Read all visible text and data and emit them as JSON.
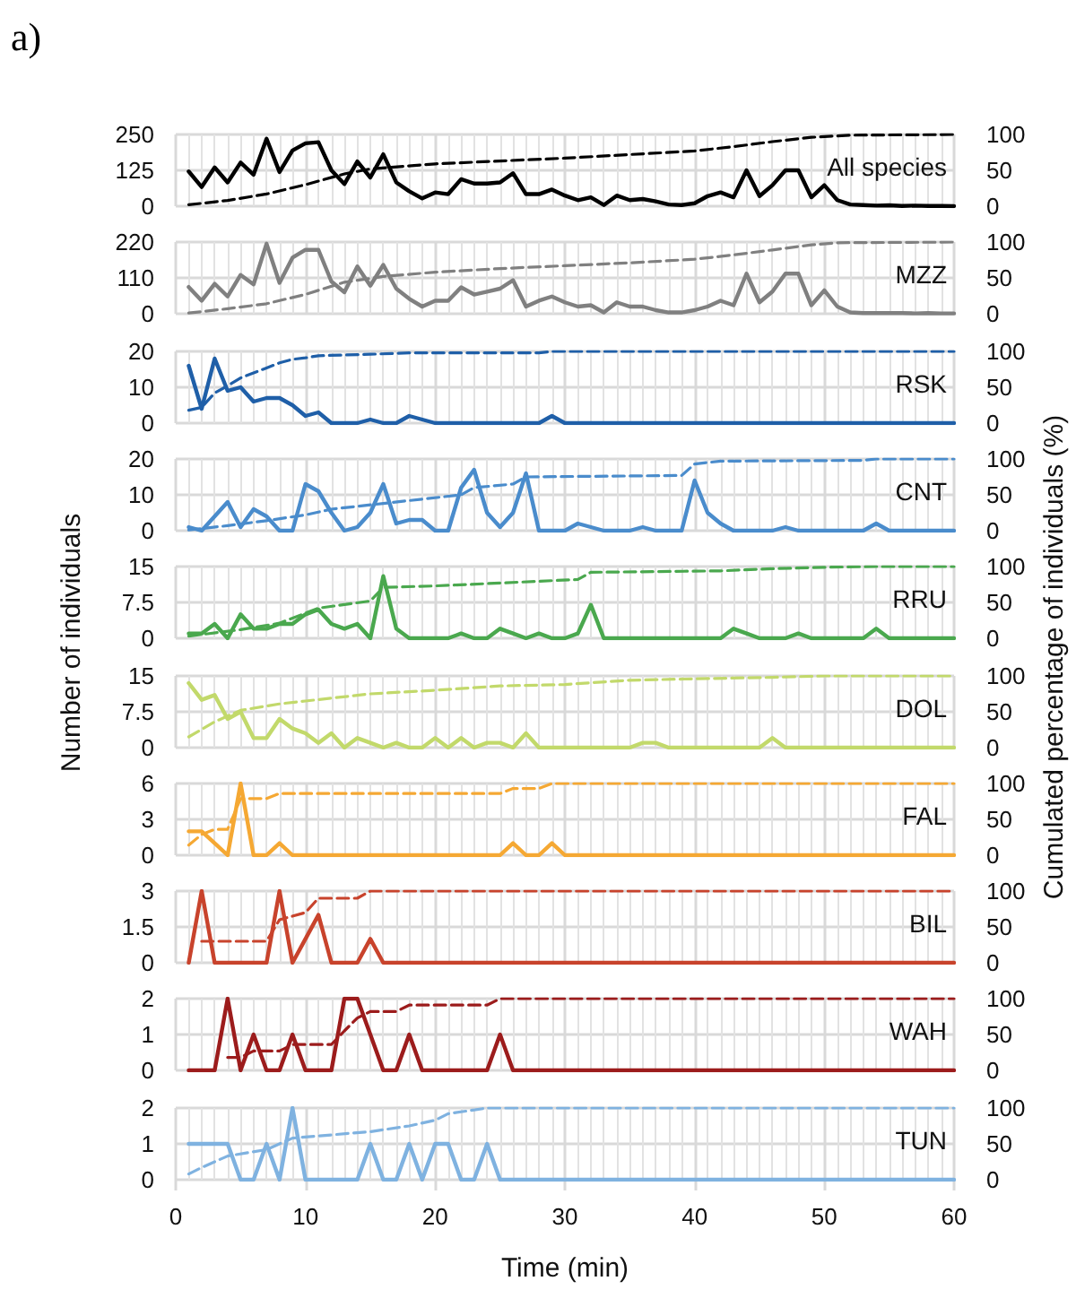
{
  "chart_data": [
    {
      "type": "line",
      "title": "a)",
      "y2label": "Cumulated percentage of individuals (%)",
      "x": [
        1,
        2,
        3,
        4,
        5,
        6,
        7,
        8,
        9,
        10,
        11,
        12,
        13,
        14,
        15,
        16,
        17,
        18,
        19,
        20,
        21,
        22,
        23,
        24,
        25,
        26,
        27,
        28,
        29,
        30,
        31,
        32,
        33,
        34,
        35,
        36,
        37,
        38,
        39,
        40,
        41,
        42,
        43,
        44,
        45,
        46,
        47,
        48,
        49,
        50,
        51,
        52,
        53,
        54,
        55,
        56,
        57,
        58,
        59,
        60
      ],
      "xlim": [
        0,
        60
      ],
      "xticks": [
        0,
        10,
        20,
        30,
        40,
        50,
        60
      ],
      "ylim": [
        0,
        250
      ],
      "yticks": [
        0,
        125,
        250
      ],
      "y2lim": [
        0,
        100
      ],
      "y2ticks": [
        0,
        50,
        100
      ],
      "grid": true,
      "marker": "none",
      "tick_labels": "y",
      "series": [
        {
          "name": "All species",
          "color": "#000000",
          "values": [
            121,
            67,
            135,
            83,
            152,
            110,
            235,
            119,
            194,
            219,
            223,
            125,
            77,
            156,
            100,
            181,
            83,
            52,
            27,
            48,
            42,
            94,
            79,
            79,
            83,
            115,
            42,
            42,
            58,
            37,
            21,
            31,
            4,
            37,
            21,
            25,
            17,
            6,
            4,
            10,
            35,
            48,
            31,
            125,
            35,
            73,
            125,
            125,
            31,
            73,
            21,
            6,
            4,
            2,
            3,
            1,
            2,
            1,
            1,
            0
          ]
        },
        {
          "color": "#000000",
          "axis": "y2",
          "line_style": "dashed",
          "x": [
            1,
            4,
            7,
            10,
            13,
            15,
            20,
            25,
            30,
            35,
            40,
            43,
            46,
            49,
            52,
            60
          ],
          "values": [
            2,
            8,
            17,
            30,
            45,
            52,
            59,
            63,
            67,
            72,
            77,
            83,
            90,
            96,
            99,
            100
          ]
        }
      ]
    },
    {
      "type": "line",
      "x": [
        1,
        2,
        3,
        4,
        5,
        6,
        7,
        8,
        9,
        10,
        11,
        12,
        13,
        14,
        15,
        16,
        17,
        18,
        19,
        20,
        21,
        22,
        23,
        24,
        25,
        26,
        27,
        28,
        29,
        30,
        31,
        32,
        33,
        34,
        35,
        36,
        37,
        38,
        39,
        40,
        41,
        42,
        43,
        44,
        45,
        46,
        47,
        48,
        49,
        50,
        51,
        52,
        53,
        54,
        55,
        56,
        57,
        58,
        59,
        60
      ],
      "xlim": [
        0,
        60
      ],
      "xticks": [
        0,
        10,
        20,
        30,
        40,
        50,
        60
      ],
      "ylim": [
        0,
        220
      ],
      "yticks": [
        0,
        110,
        220
      ],
      "y2lim": [
        0,
        100
      ],
      "y2ticks": [
        0,
        50,
        100
      ],
      "grid": true,
      "marker": "none",
      "tick_labels": "y",
      "series": [
        {
          "name": "MZZ",
          "color": "#808080",
          "values": [
            82,
            40,
            92,
            53,
            119,
            90,
            215,
            95,
            172,
            196,
            196,
            99,
            66,
            145,
            86,
            150,
            77,
            46,
            22,
            40,
            40,
            81,
            59,
            68,
            77,
            103,
            22,
            40,
            53,
            35,
            22,
            26,
            4,
            35,
            22,
            22,
            11,
            4,
            4,
            11,
            22,
            40,
            26,
            123,
            35,
            68,
            123,
            123,
            26,
            72,
            22,
            4,
            2,
            2,
            2,
            2,
            1,
            2,
            1,
            1
          ]
        },
        {
          "color": "#808080",
          "axis": "y2",
          "line_style": "dashed",
          "x": [
            1,
            4,
            7,
            10,
            13,
            16,
            20,
            25,
            30,
            35,
            40,
            43,
            46,
            49,
            51,
            60
          ],
          "values": [
            1,
            7,
            14,
            27,
            44,
            52,
            58,
            63,
            67,
            71,
            76,
            82,
            89,
            96,
            99,
            100
          ]
        }
      ]
    },
    {
      "type": "line",
      "x": [
        1,
        2,
        3,
        4,
        5,
        6,
        7,
        8,
        9,
        10,
        11,
        12,
        13,
        14,
        15,
        16,
        17,
        18,
        19,
        20,
        21,
        22,
        23,
        24,
        25,
        26,
        27,
        28,
        29,
        30,
        31,
        32,
        33,
        34,
        35,
        36,
        37,
        38,
        39,
        40,
        41,
        42,
        43,
        44,
        45,
        46,
        47,
        48,
        49,
        50,
        51,
        52,
        53,
        54,
        55,
        56,
        57,
        58,
        59,
        60
      ],
      "xlim": [
        0,
        60
      ],
      "xticks": [
        0,
        10,
        20,
        30,
        40,
        50,
        60
      ],
      "ylim": [
        0,
        20
      ],
      "yticks": [
        0,
        10,
        20
      ],
      "y2lim": [
        0,
        100
      ],
      "y2ticks": [
        0,
        50,
        100
      ],
      "grid": true,
      "marker": "none",
      "tick_labels": "y",
      "series": [
        {
          "name": "RSK",
          "color": "#1f5fa8",
          "values": [
            16,
            4,
            18,
            9,
            10,
            6,
            7,
            7,
            5,
            2,
            3,
            0,
            0,
            0,
            1,
            0,
            0,
            2,
            1,
            0,
            0,
            0,
            0,
            0,
            0,
            0,
            0,
            0,
            2,
            0,
            0,
            0,
            0,
            0,
            0,
            0,
            0,
            0,
            0,
            0,
            0,
            0,
            0,
            0,
            0,
            0,
            0,
            0,
            0,
            0,
            0,
            0,
            0,
            0,
            0,
            0,
            0,
            0,
            0,
            0
          ]
        },
        {
          "color": "#1f5fa8",
          "axis": "y2",
          "line_style": "dashed",
          "x": [
            1,
            2,
            3,
            4,
            5,
            6,
            7,
            8,
            9,
            10,
            11,
            15,
            18,
            28,
            29,
            60
          ],
          "values": [
            18,
            22,
            42,
            52,
            63,
            70,
            77,
            84,
            89,
            91,
            94,
            96,
            98,
            98,
            100,
            100
          ]
        }
      ]
    },
    {
      "type": "line",
      "x": [
        1,
        2,
        3,
        4,
        5,
        6,
        7,
        8,
        9,
        10,
        11,
        12,
        13,
        14,
        15,
        16,
        17,
        18,
        19,
        20,
        21,
        22,
        23,
        24,
        25,
        26,
        27,
        28,
        29,
        30,
        31,
        32,
        33,
        34,
        35,
        36,
        37,
        38,
        39,
        40,
        41,
        42,
        43,
        44,
        45,
        46,
        47,
        48,
        49,
        50,
        51,
        52,
        53,
        54,
        55,
        56,
        57,
        58,
        59,
        60
      ],
      "xlim": [
        0,
        60
      ],
      "xticks": [
        0,
        10,
        20,
        30,
        40,
        50,
        60
      ],
      "ylim": [
        0,
        20
      ],
      "yticks": [
        0,
        10,
        20
      ],
      "y2lim": [
        0,
        100
      ],
      "y2ticks": [
        0,
        50,
        100
      ],
      "grid": true,
      "marker": "none",
      "tick_labels": "y",
      "series": [
        {
          "name": "CNT",
          "color": "#4a8ccc",
          "values": [
            1,
            0,
            4,
            8,
            1,
            6,
            4,
            0,
            0,
            13,
            11,
            5,
            0,
            1,
            5,
            13,
            2,
            3,
            3,
            0,
            0,
            12,
            17,
            5,
            1,
            5,
            16,
            0,
            0,
            0,
            2,
            1,
            0,
            0,
            0,
            1,
            0,
            0,
            0,
            14,
            5,
            2,
            0,
            0,
            0,
            0,
            1,
            0,
            0,
            0,
            0,
            0,
            0,
            2,
            0,
            0,
            0,
            0,
            0,
            0
          ]
        },
        {
          "color": "#4a8ccc",
          "axis": "y2",
          "line_style": "dashed",
          "x": [
            1,
            4,
            7,
            10,
            12,
            16,
            19,
            22,
            23,
            26,
            27,
            39,
            40,
            42,
            53,
            54,
            60
          ],
          "values": [
            1,
            7,
            14,
            22,
            30,
            38,
            44,
            50,
            60,
            65,
            75,
            77,
            93,
            97,
            98,
            100,
            100
          ]
        }
      ]
    },
    {
      "type": "line",
      "x": [
        1,
        2,
        3,
        4,
        5,
        6,
        7,
        8,
        9,
        10,
        11,
        12,
        13,
        14,
        15,
        16,
        17,
        18,
        19,
        20,
        21,
        22,
        23,
        24,
        25,
        26,
        27,
        28,
        29,
        30,
        31,
        32,
        33,
        34,
        35,
        36,
        37,
        38,
        39,
        40,
        41,
        42,
        43,
        44,
        45,
        46,
        47,
        48,
        49,
        50,
        51,
        52,
        53,
        54,
        55,
        56,
        57,
        58,
        59,
        60
      ],
      "xlim": [
        0,
        60
      ],
      "xticks": [
        0,
        10,
        20,
        30,
        40,
        50,
        60
      ],
      "ylabel": "Number of individuals",
      "ylim": [
        0,
        15
      ],
      "yticks": [
        0,
        7.5,
        15
      ],
      "y2lim": [
        0,
        100
      ],
      "y2ticks": [
        0,
        50,
        100
      ],
      "grid": true,
      "marker": "none",
      "tick_labels": "y",
      "series": [
        {
          "name": "RRU",
          "color": "#4aa84e",
          "values": [
            1,
            1,
            3,
            0,
            5,
            2,
            2,
            3,
            3,
            5,
            6,
            3,
            2,
            3,
            0,
            13,
            2,
            0,
            0,
            0,
            0,
            1,
            0,
            0,
            2,
            1,
            0,
            1,
            0,
            0,
            1,
            7,
            0,
            0,
            0,
            0,
            0,
            0,
            0,
            0,
            0,
            0,
            2,
            1,
            0,
            0,
            0,
            1,
            0,
            0,
            0,
            0,
            0,
            2,
            0,
            0,
            0,
            0,
            0,
            0
          ]
        },
        {
          "color": "#4aa84e",
          "axis": "y2",
          "line_style": "dashed",
          "x": [
            1,
            5,
            8,
            11,
            15,
            16,
            20,
            25,
            31,
            32,
            42,
            46,
            50,
            54,
            60
          ],
          "values": [
            3,
            12,
            21,
            42,
            52,
            71,
            73,
            77,
            82,
            92,
            94,
            97,
            99,
            100,
            100
          ]
        }
      ]
    },
    {
      "type": "line",
      "x": [
        1,
        2,
        3,
        4,
        5,
        6,
        7,
        8,
        9,
        10,
        11,
        12,
        13,
        14,
        15,
        16,
        17,
        18,
        19,
        20,
        21,
        22,
        23,
        24,
        25,
        26,
        27,
        28,
        29,
        30,
        31,
        32,
        33,
        34,
        35,
        36,
        37,
        38,
        39,
        40,
        41,
        42,
        43,
        44,
        45,
        46,
        47,
        48,
        49,
        50,
        51,
        52,
        53,
        54,
        55,
        56,
        57,
        58,
        59,
        60
      ],
      "xlim": [
        0,
        60
      ],
      "xticks": [
        0,
        10,
        20,
        30,
        40,
        50,
        60
      ],
      "ylim": [
        0,
        15
      ],
      "yticks": [
        0,
        7.5,
        15
      ],
      "y2lim": [
        0,
        100
      ],
      "y2ticks": [
        0,
        50,
        100
      ],
      "grid": true,
      "marker": "none",
      "tick_labels": "y",
      "series": [
        {
          "name": "DOL",
          "color": "#c2d96b",
          "values": [
            13.5,
            10,
            11,
            6,
            7.5,
            2,
            2,
            6,
            4,
            3,
            1,
            3,
            0,
            2,
            1,
            0,
            1,
            0,
            0,
            2,
            0,
            2,
            0,
            1,
            1,
            0,
            3,
            0,
            0,
            0,
            0,
            0,
            0,
            0,
            0,
            1,
            1,
            0,
            0,
            0,
            0,
            0,
            0,
            0,
            0,
            2,
            0,
            0,
            0,
            0,
            0,
            0,
            0,
            0,
            0,
            0,
            0,
            0,
            0,
            0
          ]
        },
        {
          "color": "#c2d96b",
          "axis": "y2",
          "line_style": "dashed",
          "x": [
            1,
            3,
            5,
            8,
            10,
            15,
            20,
            25,
            30,
            35,
            40,
            46,
            50,
            60
          ],
          "values": [
            15,
            36,
            52,
            61,
            65,
            75,
            80,
            86,
            88,
            94,
            96,
            98,
            100,
            100
          ]
        }
      ]
    },
    {
      "type": "line",
      "x": [
        1,
        2,
        3,
        4,
        5,
        6,
        7,
        8,
        9,
        10,
        11,
        12,
        13,
        14,
        15,
        16,
        17,
        18,
        19,
        20,
        21,
        22,
        23,
        24,
        25,
        26,
        27,
        28,
        29,
        30,
        31,
        32,
        33,
        34,
        35,
        36,
        37,
        38,
        39,
        40,
        41,
        42,
        43,
        44,
        45,
        46,
        47,
        48,
        49,
        50,
        51,
        52,
        53,
        54,
        55,
        56,
        57,
        58,
        59,
        60
      ],
      "xlim": [
        0,
        60
      ],
      "xticks": [
        0,
        10,
        20,
        30,
        40,
        50,
        60
      ],
      "ylim": [
        0,
        6
      ],
      "yticks": [
        0,
        3,
        6
      ],
      "y2lim": [
        0,
        100
      ],
      "y2ticks": [
        0,
        50,
        100
      ],
      "grid": true,
      "marker": "none",
      "tick_labels": "y",
      "series": [
        {
          "name": "FAL",
          "color": "#f5a833",
          "values": [
            2,
            2,
            1,
            0,
            6,
            0,
            0,
            1,
            0,
            0,
            0,
            0,
            0,
            0,
            0,
            0,
            0,
            0,
            0,
            0,
            0,
            0,
            0,
            0,
            0,
            1,
            0,
            0,
            1,
            0,
            0,
            0,
            0,
            0,
            0,
            0,
            0,
            0,
            0,
            0,
            0,
            0,
            0,
            0,
            0,
            0,
            0,
            0,
            0,
            0,
            0,
            0,
            0,
            0,
            0,
            0,
            0,
            0,
            0,
            0
          ]
        },
        {
          "color": "#f5a833",
          "axis": "y2",
          "line_style": "dashed",
          "x": [
            1,
            2,
            3,
            4,
            5,
            7,
            8,
            25,
            26,
            28,
            29,
            60
          ],
          "values": [
            14,
            29,
            36,
            36,
            79,
            79,
            86,
            86,
            93,
            93,
            100,
            100
          ]
        }
      ]
    },
    {
      "type": "line",
      "x": [
        1,
        2,
        3,
        4,
        5,
        6,
        7,
        8,
        9,
        10,
        11,
        12,
        13,
        14,
        15,
        16,
        17,
        18,
        19,
        20,
        21,
        22,
        23,
        24,
        25,
        26,
        27,
        28,
        29,
        30,
        31,
        32,
        33,
        34,
        35,
        36,
        37,
        38,
        39,
        40,
        41,
        42,
        43,
        44,
        45,
        46,
        47,
        48,
        49,
        50,
        51,
        52,
        53,
        54,
        55,
        56,
        57,
        58,
        59,
        60
      ],
      "xlim": [
        0,
        60
      ],
      "xticks": [
        0,
        10,
        20,
        30,
        40,
        50,
        60
      ],
      "ylim": [
        0,
        3
      ],
      "yticks": [
        0,
        1.5,
        3
      ],
      "y2lim": [
        0,
        100
      ],
      "y2ticks": [
        0,
        50,
        100
      ],
      "grid": true,
      "marker": "none",
      "tick_labels": "y",
      "series": [
        {
          "name": "BIL",
          "color": "#c8432c",
          "values": [
            0,
            3,
            0,
            0,
            0,
            0,
            0,
            3,
            0,
            1,
            2,
            0,
            0,
            0,
            1,
            0,
            0,
            0,
            0,
            0,
            0,
            0,
            0,
            0,
            0,
            0,
            0,
            0,
            0,
            0,
            0,
            0,
            0,
            0,
            0,
            0,
            0,
            0,
            0,
            0,
            0,
            0,
            0,
            0,
            0,
            0,
            0,
            0,
            0,
            0,
            0,
            0,
            0,
            0,
            0,
            0,
            0,
            0,
            0,
            0
          ]
        },
        {
          "color": "#c8432c",
          "axis": "y2",
          "line_style": "dashed",
          "x": [
            2,
            7,
            8,
            10,
            11,
            14,
            15,
            60
          ],
          "values": [
            30,
            30,
            60,
            70,
            90,
            90,
            100,
            100
          ]
        }
      ]
    },
    {
      "type": "line",
      "x": [
        1,
        2,
        3,
        4,
        5,
        6,
        7,
        8,
        9,
        10,
        11,
        12,
        13,
        14,
        15,
        16,
        17,
        18,
        19,
        20,
        21,
        22,
        23,
        24,
        25,
        26,
        27,
        28,
        29,
        30,
        31,
        32,
        33,
        34,
        35,
        36,
        37,
        38,
        39,
        40,
        41,
        42,
        43,
        44,
        45,
        46,
        47,
        48,
        49,
        50,
        51,
        52,
        53,
        54,
        55,
        56,
        57,
        58,
        59,
        60
      ],
      "xlim": [
        0,
        60
      ],
      "xticks": [
        0,
        10,
        20,
        30,
        40,
        50,
        60
      ],
      "ylim": [
        0,
        2
      ],
      "yticks": [
        0,
        1,
        2
      ],
      "y2lim": [
        0,
        100
      ],
      "y2ticks": [
        0,
        50,
        100
      ],
      "grid": true,
      "marker": "none",
      "tick_labels": "y",
      "series": [
        {
          "name": "WAH",
          "color": "#9c1c1c",
          "values": [
            0,
            0,
            0,
            2,
            0,
            1,
            0,
            0,
            1,
            0,
            0,
            0,
            2,
            2,
            1,
            0,
            0,
            1,
            0,
            0,
            0,
            0,
            0,
            0,
            1,
            0,
            0,
            0,
            0,
            0,
            0,
            0,
            0,
            0,
            0,
            0,
            0,
            0,
            0,
            0,
            0,
            0,
            0,
            0,
            0,
            0,
            0,
            0,
            0,
            0,
            0,
            0,
            0,
            0,
            0,
            0,
            0,
            0,
            0,
            0
          ]
        },
        {
          "color": "#9c1c1c",
          "axis": "y2",
          "line_style": "dashed",
          "x": [
            4,
            5,
            6,
            8,
            9,
            12,
            13,
            14,
            15,
            17,
            18,
            24,
            25,
            60
          ],
          "values": [
            18,
            18,
            27,
            27,
            36,
            36,
            55,
            73,
            82,
            82,
            91,
            91,
            100,
            100
          ]
        }
      ]
    },
    {
      "type": "line",
      "xlabel": "Time (min)",
      "x": [
        1,
        2,
        3,
        4,
        5,
        6,
        7,
        8,
        9,
        10,
        11,
        12,
        13,
        14,
        15,
        16,
        17,
        18,
        19,
        20,
        21,
        22,
        23,
        24,
        25,
        26,
        27,
        28,
        29,
        30,
        31,
        32,
        33,
        34,
        35,
        36,
        37,
        38,
        39,
        40,
        41,
        42,
        43,
        44,
        45,
        46,
        47,
        48,
        49,
        50,
        51,
        52,
        53,
        54,
        55,
        56,
        57,
        58,
        59,
        60
      ],
      "xlim": [
        0,
        60
      ],
      "xticks": [
        0,
        10,
        20,
        30,
        40,
        50,
        60
      ],
      "ylim": [
        0,
        2
      ],
      "yticks": [
        0,
        1,
        2
      ],
      "y2lim": [
        0,
        100
      ],
      "y2ticks": [
        0,
        50,
        100
      ],
      "grid": true,
      "marker": "none",
      "series": [
        {
          "name": "TUN",
          "color": "#7fb2e0",
          "values": [
            1,
            1,
            1,
            1,
            0,
            0,
            1,
            0,
            2,
            0,
            0,
            0,
            0,
            0,
            1,
            0,
            0,
            1,
            0,
            1,
            1,
            0,
            0,
            1,
            0,
            0,
            0,
            0,
            0,
            0,
            0,
            0,
            0,
            0,
            0,
            0,
            0,
            0,
            0,
            0,
            0,
            0,
            0,
            0,
            0,
            0,
            0,
            0,
            0,
            0,
            0,
            0,
            0,
            0,
            0,
            0,
            0,
            0,
            0,
            0
          ]
        },
        {
          "color": "#7fb2e0",
          "axis": "y2",
          "line_style": "dashed",
          "x": [
            1,
            2,
            3,
            4,
            7,
            9,
            15,
            18,
            20,
            21,
            24,
            60
          ],
          "values": [
            8,
            17,
            25,
            33,
            42,
            58,
            67,
            75,
            83,
            92,
            100,
            100
          ]
        }
      ]
    }
  ]
}
